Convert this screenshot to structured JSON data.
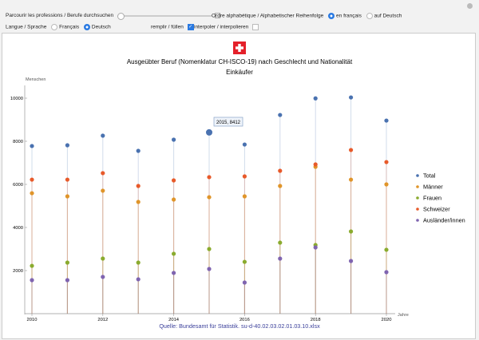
{
  "controls": {
    "browse_label": "Parcourir les professions / Berufe durchsuchen",
    "order_label": "Ordre alphabétique / Alphabetischer Reihenfolge",
    "order_options": [
      "en français",
      "auf Deutsch"
    ],
    "order_selected": 0,
    "lang_label": "Langue / Sprache",
    "lang_options": [
      "Français",
      "Deutsch"
    ],
    "lang_selected": 1,
    "fill_label": "remplir / füllen",
    "fill_checked": true,
    "interp_label": "interpoler / interpolieren",
    "interp_checked": false,
    "slider_value": 0
  },
  "tooltip": "2015, 8412",
  "source": "Quelle: Bundesamt für Statistik. su-d-40.02.03.02.01.03.10.xlsx",
  "chart_data": {
    "type": "scatter",
    "title": "Ausgeübter Beruf (Nomenklatur CH-ISCO-19) nach Geschlecht und Nationalität",
    "subtitle": "Einkäufer",
    "xlabel": "Jahre",
    "ylabel": "Menschen",
    "xlim": [
      2009.9,
      2020.25
    ],
    "ylim": [
      0,
      10800
    ],
    "xticks": [
      "2010",
      "2012",
      "2014",
      "2016",
      "2018",
      "2020"
    ],
    "yticks": [
      "2000",
      "4000",
      "6000",
      "8000",
      "10000"
    ],
    "legend_position": "right",
    "x": [
      2010,
      2011,
      2012,
      2013,
      2014,
      2015,
      2016,
      2017,
      2018,
      2019,
      2020
    ],
    "series": [
      {
        "name": "Total",
        "color": "#4a72b0",
        "values": [
          7780,
          7815,
          8260,
          7555,
          8075,
          8412,
          7850,
          9220,
          9990,
          10035,
          8960
        ]
      },
      {
        "name": "Männer",
        "color": "#e0952a",
        "values": [
          5590,
          5445,
          5705,
          5185,
          5295,
          5405,
          5445,
          5925,
          6815,
          6220,
          6000
        ]
      },
      {
        "name": "Frauen",
        "color": "#8aab2e",
        "values": [
          2220,
          2370,
          2555,
          2370,
          2780,
          3000,
          2405,
          3295,
          3185,
          3815,
          2965
        ]
      },
      {
        "name": "Schweizer",
        "color": "#e85a2a",
        "values": [
          6220,
          6220,
          6520,
          5925,
          6185,
          6335,
          6370,
          6630,
          6925,
          7595,
          7035
        ]
      },
      {
        "name": "Ausländer/innen",
        "color": "#7f64b0",
        "values": [
          1555,
          1555,
          1705,
          1595,
          1890,
          2075,
          1445,
          2555,
          3075,
          2445,
          1925
        ]
      }
    ]
  }
}
